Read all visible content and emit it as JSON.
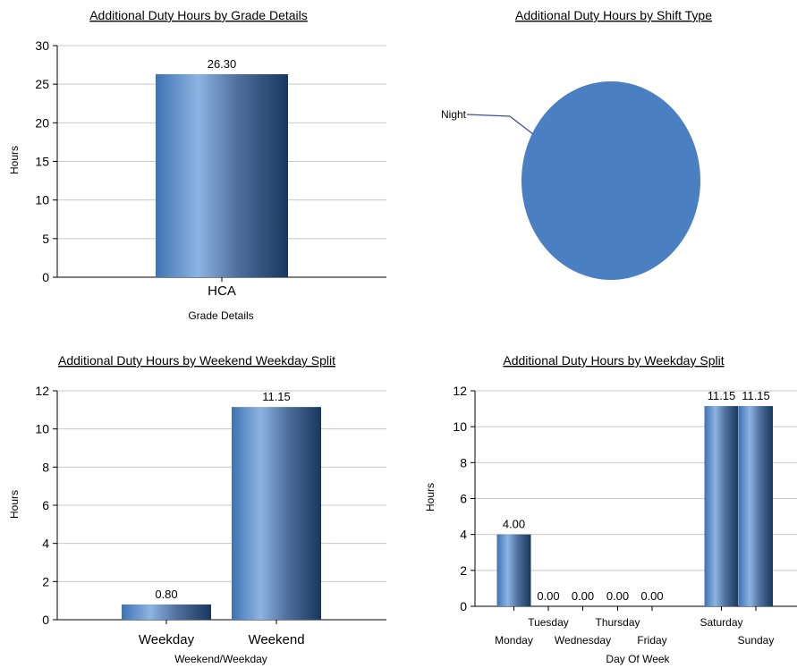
{
  "chart_data": [
    {
      "type": "bar",
      "title": "Additional Duty Hours by Grade Details",
      "xlabel": "Grade Details",
      "ylabel": "Hours",
      "categories": [
        "HCA"
      ],
      "values": [
        26.3
      ],
      "value_labels": [
        "26.30"
      ],
      "ylim": [
        0,
        30
      ],
      "yticks": [
        0,
        5,
        10,
        15,
        20,
        25,
        30
      ],
      "grid": true,
      "colors": {
        "bar_light": "#8db4e2",
        "bar_mid": "#4f81bd",
        "bar_dark": "#17375e"
      }
    },
    {
      "type": "pie",
      "title": "Additional Duty Hours by Shift Type",
      "slices": [
        {
          "label": "Night",
          "value": 100
        }
      ],
      "colors": {
        "slice": "#4a7fc1",
        "leader": "#3b4f9a"
      }
    },
    {
      "type": "bar",
      "title": "Additional Duty Hours by Weekend Weekday Split",
      "xlabel": "Weekend/Weekday",
      "ylabel": "Hours",
      "categories": [
        "Weekday",
        "Weekend"
      ],
      "values": [
        0.8,
        11.15
      ],
      "value_labels": [
        "0.80",
        "11.15"
      ],
      "ylim": [
        0,
        12
      ],
      "yticks": [
        0,
        2,
        4,
        6,
        8,
        10,
        12
      ],
      "grid": true
    },
    {
      "type": "bar",
      "title": "Additional Duty Hours by Weekday Split",
      "xlabel": "Day Of Week",
      "ylabel": "Hours",
      "categories": [
        "Monday",
        "Tuesday",
        "Wednesday",
        "Thursday",
        "Friday",
        "Saturday",
        "Sunday"
      ],
      "values": [
        4.0,
        0.0,
        0.0,
        0.0,
        0.0,
        11.15,
        11.15
      ],
      "value_labels": [
        "4.00",
        "0.00",
        "0.00",
        "0.00",
        "0.00",
        "11.15",
        "11.15"
      ],
      "ylim": [
        0,
        12
      ],
      "yticks": [
        0,
        2,
        4,
        6,
        8,
        10,
        12
      ],
      "grid": true
    }
  ]
}
